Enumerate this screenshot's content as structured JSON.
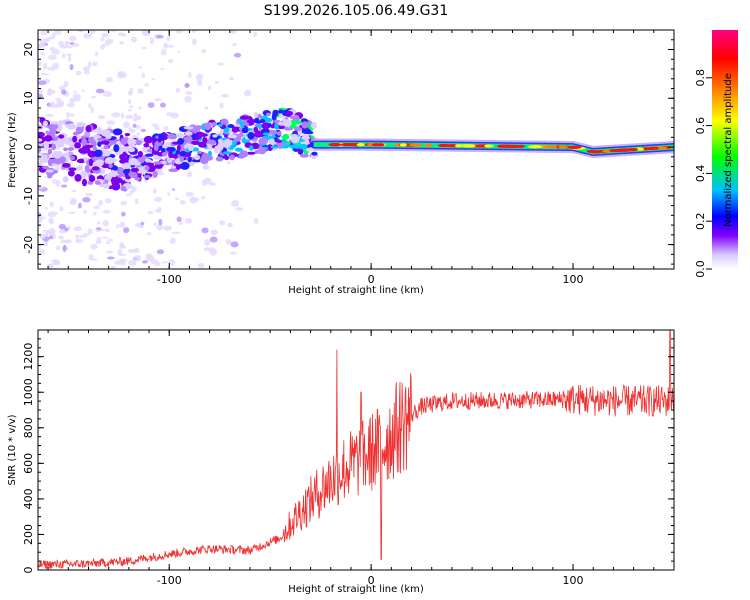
{
  "page": {
    "title": "S199.2026.105.06.49.G31"
  },
  "chart_data": [
    {
      "type": "heatmap",
      "name": "spectrogram",
      "xlabel": "Height of straight line (km)",
      "ylabel": "Frequency (Hz)",
      "xlim": [
        -165,
        150
      ],
      "ylim": [
        -25,
        24
      ],
      "xticks": [
        -100,
        0,
        100
      ],
      "xtick_labels": [
        "-100",
        "0",
        "100"
      ],
      "yticks": [
        -20,
        -10,
        0,
        10,
        20
      ],
      "ytick_labels": [
        "-20",
        "-10",
        "0",
        "10",
        "20"
      ],
      "colorbar": {
        "label": "Normalized spectral amplitude",
        "range": [
          0,
          1
        ],
        "ticks": [
          0.0,
          0.2,
          0.4,
          0.6,
          0.8
        ],
        "tick_labels": [
          "0.0",
          "0.2",
          "0.4",
          "0.6",
          "0.8"
        ],
        "colors": [
          "#ffffff",
          "#d8c8ff",
          "#8000ff",
          "#0000ff",
          "#00c0ff",
          "#00ff00",
          "#ffff00",
          "#ff8000",
          "#ff0000",
          "#ff0080"
        ]
      },
      "ridge": {
        "description_points": [
          {
            "x": -160,
            "freq": 0
          },
          {
            "x": -120,
            "freq": -3
          },
          {
            "x": -80,
            "freq": 1
          },
          {
            "x": -40,
            "freq": 4
          },
          {
            "x": -28,
            "freq": 0.5
          },
          {
            "x": 0,
            "freq": 0.5
          },
          {
            "x": 100,
            "freq": 0
          },
          {
            "x": 110,
            "freq": -1
          },
          {
            "x": 150,
            "freq": 0
          }
        ]
      }
    },
    {
      "type": "line",
      "name": "snr",
      "xlabel": "Height of straight line (km)",
      "ylabel": "SNR (10 * v/v)",
      "xlim": [
        -165,
        150
      ],
      "ylim": [
        0,
        1350
      ],
      "xticks": [
        -100,
        0,
        100
      ],
      "xtick_labels": [
        "-100",
        "0",
        "100"
      ],
      "yticks": [
        0,
        200,
        400,
        600,
        800,
        1000,
        1200
      ],
      "ytick_labels": [
        "0",
        "200",
        "400",
        "600",
        "800",
        "1000",
        "1200"
      ],
      "line_color": "#ee3030",
      "trend": [
        {
          "x": -165,
          "y": 30
        },
        {
          "x": -140,
          "y": 35
        },
        {
          "x": -120,
          "y": 50
        },
        {
          "x": -100,
          "y": 90
        },
        {
          "x": -80,
          "y": 120
        },
        {
          "x": -60,
          "y": 110
        },
        {
          "x": -45,
          "y": 180
        },
        {
          "x": -35,
          "y": 330
        },
        {
          "x": -25,
          "y": 450
        },
        {
          "x": -15,
          "y": 560
        },
        {
          "x": -5,
          "y": 620
        },
        {
          "x": 5,
          "y": 700
        },
        {
          "x": 15,
          "y": 820
        },
        {
          "x": 25,
          "y": 920
        },
        {
          "x": 40,
          "y": 950
        },
        {
          "x": 70,
          "y": 955
        },
        {
          "x": 100,
          "y": 960
        },
        {
          "x": 125,
          "y": 950
        },
        {
          "x": 150,
          "y": 950
        }
      ],
      "spikes": [
        {
          "x": -17,
          "y": 1240
        },
        {
          "x": -5,
          "y": 1000
        },
        {
          "x": 5,
          "y": 60
        },
        {
          "x": 148,
          "y": 1350
        }
      ]
    }
  ]
}
